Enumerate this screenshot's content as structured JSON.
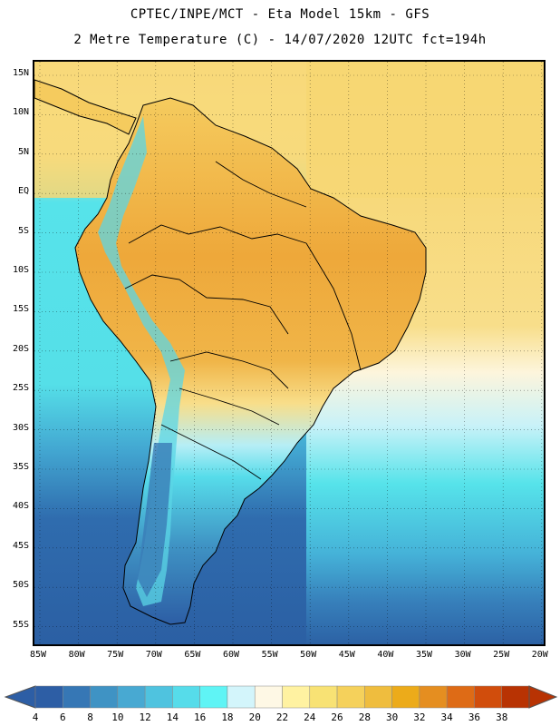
{
  "title": {
    "line1": "CPTEC/INPE/MCT -  Eta Model 15km - GFS",
    "line2": "2 Metre Temperature (C) - 14/07/2020 12UTC fct=194h"
  },
  "map": {
    "lat_labels": [
      "15N",
      "10N",
      "5N",
      "EQ",
      "5S",
      "10S",
      "15S",
      "20S",
      "25S",
      "30S",
      "35S",
      "40S",
      "45S",
      "50S",
      "55S"
    ],
    "lon_labels": [
      "85W",
      "80W",
      "75W",
      "70W",
      "65W",
      "60W",
      "55W",
      "50W",
      "45W",
      "40W",
      "35W",
      "30W",
      "25W",
      "20W"
    ],
    "colors": {
      "ocean_cold": "#2b5fa3",
      "ocean_mid": "#3fa6d0",
      "ocean_warm": "#56e3ea",
      "land_warm": "#f5cb5e",
      "land_hot": "#eea83a",
      "land_mild": "#f7dc86",
      "border": "#000000",
      "grid": "#000000"
    }
  },
  "colorbar": {
    "labels": [
      "4",
      "6",
      "8",
      "10",
      "12",
      "14",
      "16",
      "18",
      "20",
      "22",
      "24",
      "26",
      "28",
      "30",
      "32",
      "34",
      "36",
      "38"
    ],
    "colors": [
      "#2d5ea5",
      "#3677b5",
      "#3f93c4",
      "#48a9d2",
      "#4fc3df",
      "#56dcea",
      "#5ff4f5",
      "#d3f5fb",
      "#fef8e5",
      "#fff2a1",
      "#f8e274",
      "#f5d15b",
      "#efbd3e",
      "#ecab1a",
      "#e58e20",
      "#de6b16",
      "#d14d0c",
      "#b83303"
    ]
  }
}
